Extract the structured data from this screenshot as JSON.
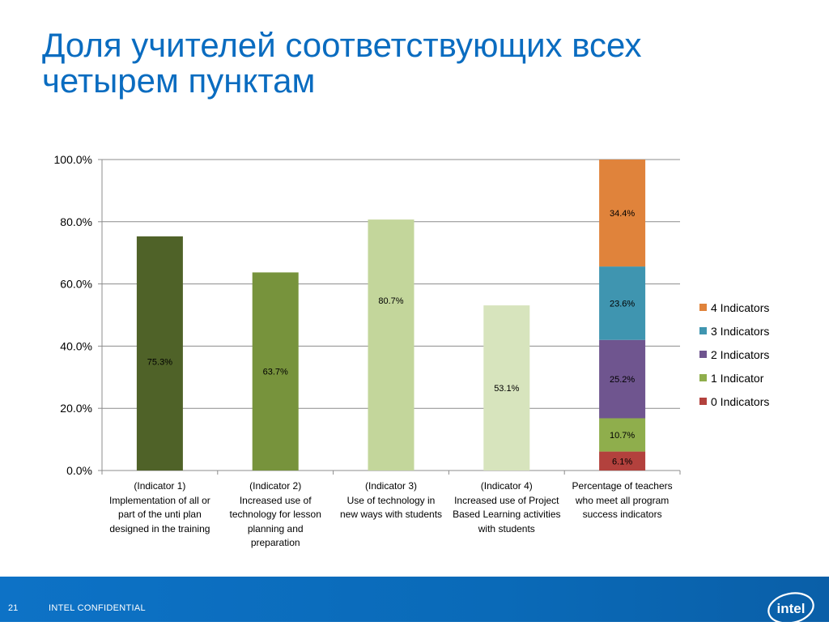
{
  "title": {
    "line1": "Доля учителей соответствующих всех",
    "line2": "четырем пунктам"
  },
  "chart_data": {
    "type": "bar",
    "categories": [
      [
        "(Indicator 1)",
        "Implementation of all or",
        "part of the unti plan",
        "designed in the training"
      ],
      [
        "(Indicator 2)",
        "Increased use of",
        "technology for lesson",
        "planning and",
        "preparation"
      ],
      [
        "(Indicator 3)",
        "Use of technology in",
        "new ways with students"
      ],
      [
        "(Indicator 4)",
        "Increased use of Project",
        "Based Learning activities",
        "with students"
      ],
      [
        "Percentage of teachers",
        "who meet all program",
        "success indicators"
      ]
    ],
    "single_bars": [
      {
        "value": 75.3,
        "label": "75.3%",
        "color": "#4f6228"
      },
      {
        "value": 63.7,
        "label": "63.7%",
        "color": "#77933c"
      },
      {
        "value": 80.7,
        "label": "80.7%",
        "color": "#c3d69b"
      },
      {
        "value": 53.1,
        "label": "53.1%",
        "color": "#d7e4bd"
      }
    ],
    "stacked_bar": {
      "segments": [
        {
          "name": "0 Indicators",
          "value": 6.1,
          "label": "6.1%",
          "color": "#b3413d"
        },
        {
          "name": "1 Indicator",
          "value": 10.7,
          "label": "10.7%",
          "color": "#8fae4c"
        },
        {
          "name": "2 Indicators",
          "value": 25.2,
          "label": "25.2%",
          "color": "#6f558f"
        },
        {
          "name": "3 Indicators",
          "value": 23.6,
          "label": "23.6%",
          "color": "#3f95b0"
        },
        {
          "name": "4 Indicators",
          "value": 34.4,
          "label": "34.4%",
          "color": "#e0833b"
        }
      ]
    },
    "ylim": [
      0,
      100
    ],
    "yticks": [
      "0.0%",
      "20.0%",
      "40.0%",
      "60.0%",
      "80.0%",
      "100.0%"
    ],
    "grid": true,
    "legend": "right",
    "legend_order": [
      "4 Indicators",
      "3 Indicators",
      "2 Indicators",
      "1 Indicator",
      "0 Indicators"
    ]
  },
  "footer": {
    "page": "21",
    "confidential": "INTEL CONFIDENTIAL",
    "logo": "intel"
  }
}
